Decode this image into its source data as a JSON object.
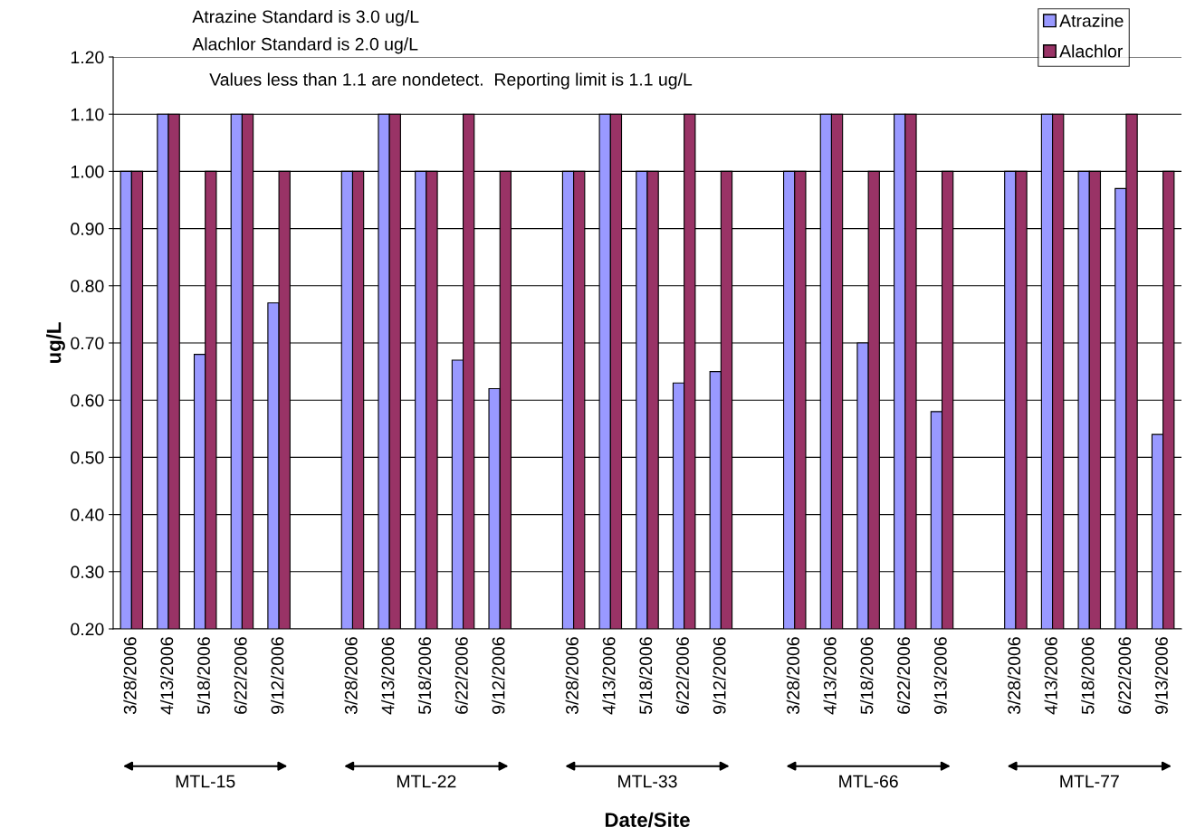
{
  "chart_data": {
    "type": "bar",
    "xlabel": "Date/Site",
    "ylabel": "ug/L",
    "categories": [
      "3/28/2006",
      "4/13/2006",
      "5/18/2006",
      "6/22/2006",
      "9/12/2006",
      null,
      "3/28/2006",
      "4/13/2006",
      "5/18/2006",
      "6/22/2006",
      "9/12/2006",
      null,
      "3/28/2006",
      "4/13/2006",
      "5/18/2006",
      "6/22/2006",
      "9/12/2006",
      null,
      "3/28/2006",
      "4/13/2006",
      "5/18/2006",
      "6/22/2006",
      "9/13/2006",
      null,
      "3/28/2006",
      "4/13/2006",
      "5/18/2006",
      "6/22/2006",
      "9/13/2006"
    ],
    "series": [
      {
        "name": "Atrazine",
        "color": "#9999ff",
        "values": [
          1.0,
          1.1,
          0.68,
          1.1,
          0.77,
          null,
          1.0,
          1.1,
          1.0,
          0.67,
          0.62,
          null,
          1.0,
          1.1,
          1.0,
          0.63,
          0.65,
          null,
          1.0,
          1.1,
          0.7,
          1.1,
          0.58,
          null,
          1.0,
          1.1,
          1.0,
          0.97,
          0.54
        ]
      },
      {
        "name": "Alachlor",
        "color": "#993366",
        "values": [
          1.0,
          1.1,
          1.0,
          1.1,
          1.0,
          null,
          1.0,
          1.1,
          1.0,
          1.1,
          1.0,
          null,
          1.0,
          1.1,
          1.0,
          1.1,
          1.0,
          null,
          1.0,
          1.1,
          1.0,
          1.1,
          1.0,
          null,
          1.0,
          1.1,
          1.0,
          1.1,
          1.0
        ]
      }
    ],
    "ylim": [
      0.2,
      1.2
    ],
    "yticks": [
      {
        "value": 0.2,
        "label": "0.20"
      },
      {
        "value": 0.3,
        "label": "0.30"
      },
      {
        "value": 0.4,
        "label": "0.40"
      },
      {
        "value": 0.5,
        "label": "0.50"
      },
      {
        "value": 0.6,
        "label": "0.60"
      },
      {
        "value": 0.7,
        "label": "0.70"
      },
      {
        "value": 0.8,
        "label": "0.80"
      },
      {
        "value": 0.9,
        "label": "0.90"
      },
      {
        "value": 1.0,
        "label": "1.00"
      },
      {
        "value": 1.1,
        "label": "1.10"
      },
      {
        "value": 1.2,
        "label": "1.20"
      }
    ],
    "grid": "y",
    "legend": "top right",
    "annotations": [
      "Atrazine Standard is 3.0 ug/L",
      "Alachlor Standard is 2.0 ug/L",
      "Values less than 1.1 are nondetect.  Reporting limit is 1.1 ug/L",
      "MTL-15",
      "MTL-22",
      "MTL-33",
      "MTL-66",
      "MTL-77"
    ]
  }
}
